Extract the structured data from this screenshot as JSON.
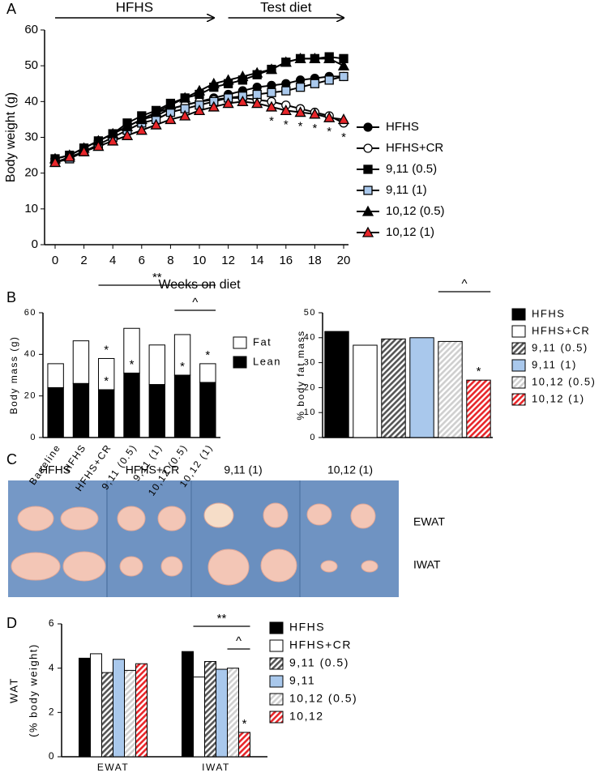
{
  "chart_data": [
    {
      "panel": "A",
      "type": "line",
      "ylabel": "Body weight (g)",
      "xlabel": "Weeks on diet",
      "x": [
        0,
        1,
        2,
        3,
        4,
        5,
        6,
        7,
        8,
        9,
        10,
        11,
        12,
        13,
        14,
        15,
        16,
        17,
        18,
        19,
        20
      ],
      "xlim": [
        0,
        20
      ],
      "xticks": [
        0,
        2,
        4,
        6,
        8,
        10,
        12,
        14,
        16,
        18,
        20
      ],
      "ylim": [
        0,
        60
      ],
      "yticks": [
        0,
        10,
        20,
        30,
        40,
        50,
        60
      ],
      "periods": [
        {
          "label": "HFHS",
          "from": 0,
          "to": 11
        },
        {
          "label": "Test diet",
          "from": 12,
          "to": 20
        }
      ],
      "annotations": [
        {
          "text": "*",
          "x": 15
        },
        {
          "text": "*",
          "x": 16
        },
        {
          "text": "*",
          "x": 17
        },
        {
          "text": "*",
          "x": 18
        },
        {
          "text": "*",
          "x": 19
        },
        {
          "text": "*",
          "x": 20
        }
      ],
      "series": [
        {
          "name": "HFHS",
          "marker": "circle",
          "color": "#000000",
          "values": [
            24,
            25,
            27,
            29,
            31,
            33,
            35,
            37,
            38,
            39,
            40,
            41,
            42,
            43,
            44,
            44.5,
            45,
            46,
            46.5,
            47,
            47
          ]
        },
        {
          "name": "HFHS+CR",
          "marker": "circle",
          "color": "#ffffff",
          "values": [
            24,
            25,
            27,
            29,
            31,
            33,
            35,
            36,
            38,
            39,
            40,
            40.5,
            41,
            41,
            40.5,
            40,
            39,
            38,
            37,
            36,
            34
          ]
        },
        {
          "name": "9,11 (0.5)",
          "marker": "square",
          "color": "#000000",
          "values": [
            24,
            25,
            27,
            29,
            31,
            34,
            36,
            37.5,
            39.5,
            41,
            42,
            44,
            45,
            46,
            47.5,
            49,
            51,
            52,
            52,
            52.5,
            52
          ]
        },
        {
          "name": "9,11 (1)",
          "marker": "square",
          "color": "#a9c8ec",
          "values": [
            23,
            24,
            26,
            28,
            30,
            32,
            34,
            35,
            37,
            38,
            39,
            40,
            41,
            41.5,
            42,
            42.5,
            43,
            44,
            45,
            46,
            47
          ]
        },
        {
          "name": "10,12 (0.5)",
          "marker": "triangle",
          "color": "#000000",
          "values": [
            24,
            25,
            27,
            29,
            31,
            33,
            35,
            37,
            39,
            41,
            43,
            45,
            46,
            47,
            48,
            49,
            51,
            52,
            52,
            52,
            50
          ]
        },
        {
          "name": "10,12 (1)",
          "marker": "triangle",
          "color": "#e8262a",
          "values": [
            23,
            24.5,
            26,
            27.5,
            29,
            30.5,
            32,
            33.5,
            35,
            36,
            37.5,
            38.5,
            39.5,
            40,
            39.5,
            38.5,
            37.5,
            37,
            36.5,
            35.5,
            35
          ]
        }
      ]
    },
    {
      "panel": "B",
      "type": "stacked_bar",
      "ylabel": "Body mass (g)",
      "categories": [
        "Baseline",
        "HFHS",
        "HFHS+CR",
        "9,11 (0.5)",
        "9,11 (1)",
        "10,12 (0.5)",
        "10,12 (1)"
      ],
      "ylim": [
        0,
        60
      ],
      "yticks": [
        0,
        20,
        40,
        60
      ],
      "series": [
        {
          "name": "Fat",
          "color": "#ffffff",
          "values": [
            11.5,
            20.5,
            15,
            21.5,
            19,
            19.5,
            9
          ]
        },
        {
          "name": "Lean",
          "color": "#000000",
          "values": [
            24,
            26,
            23,
            31,
            25.5,
            30,
            26.5
          ]
        }
      ],
      "sig_label": "*",
      "sig": [
        [
          2,
          0
        ],
        [
          2,
          1
        ],
        [
          3,
          1
        ],
        [
          5,
          1
        ],
        [
          6,
          0
        ]
      ],
      "brackets": [
        {
          "label": "**",
          "from": 2,
          "to": 6
        },
        {
          "label": "^",
          "from": 5,
          "to": 6
        }
      ]
    },
    {
      "type": "bar",
      "ylabel": "% body fat mass",
      "ylim": [
        0,
        50
      ],
      "yticks": [
        0,
        10,
        20,
        30,
        40,
        50
      ],
      "series": [
        {
          "name": "HFHS",
          "color": "#000000",
          "hatch": false,
          "values": [
            42.5
          ]
        },
        {
          "name": "HFHS+CR",
          "color": "#ffffff",
          "hatch": false,
          "values": [
            37
          ]
        },
        {
          "name": "9,11 (0.5)",
          "color": "#555555",
          "hatch": true,
          "values": [
            39.5
          ]
        },
        {
          "name": "9,11 (1)",
          "color": "#a9c8ec",
          "hatch": false,
          "values": [
            40
          ]
        },
        {
          "name": "10,12 (0.5)",
          "color": "#cfcfcf",
          "hatch": true,
          "values": [
            38.5
          ]
        },
        {
          "name": "10,12 (1)",
          "color": "#e8262a",
          "hatch": true,
          "values": [
            23
          ]
        }
      ],
      "sig_label": "*",
      "sig": [
        5
      ],
      "brackets": [
        {
          "label": "^",
          "from": 4,
          "to": 5
        }
      ]
    },
    {
      "panel": "D",
      "type": "grouped_bar",
      "ylabel": "WAT",
      "ylabel_sub": "(% body weight)",
      "categories": [
        "EWAT",
        "IWAT"
      ],
      "ylim": [
        0,
        6
      ],
      "yticks": [
        0,
        2,
        4,
        6
      ],
      "series": [
        {
          "name": "HFHS",
          "color": "#000000",
          "hatch": false,
          "values": [
            4.45,
            4.75
          ]
        },
        {
          "name": "HFHS+CR",
          "color": "#ffffff",
          "hatch": false,
          "values": [
            4.65,
            3.6
          ]
        },
        {
          "name": "9,11 (0.5)",
          "color": "#555555",
          "hatch": true,
          "values": [
            3.8,
            4.3
          ]
        },
        {
          "name": "9,11",
          "color": "#a9c8ec",
          "hatch": false,
          "values": [
            4.4,
            3.95
          ]
        },
        {
          "name": "10,12 (0.5)",
          "color": "#cfcfcf",
          "hatch": true,
          "values": [
            3.9,
            4.0
          ]
        },
        {
          "name": "10,12",
          "color": "#e8262a",
          "hatch": true,
          "values": [
            4.2,
            1.1
          ]
        }
      ],
      "sig_label": "*",
      "sig": [
        [
          1,
          5
        ]
      ],
      "brackets": [
        {
          "label": "**",
          "group": 1,
          "from": 1,
          "to": 5
        },
        {
          "label": "^",
          "group": 1,
          "from": 4,
          "to": 5
        }
      ]
    }
  ],
  "photo_panel": {
    "panel": "C",
    "columns": [
      "HFHS",
      "HFHS+CR",
      "9,11 (1)",
      "10,12 (1)"
    ],
    "rows": [
      "EWAT",
      "IWAT"
    ]
  }
}
